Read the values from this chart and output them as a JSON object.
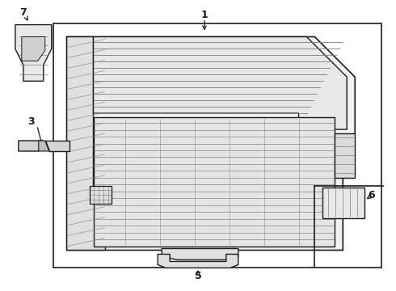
{
  "bg_color": "#ffffff",
  "line_color": "#1a1a1a",
  "gray_fill": "#d8d8d8",
  "mid_gray": "#b0b0b0",
  "dark_gray": "#808080",
  "fig_width": 4.9,
  "fig_height": 3.6,
  "dpi": 100
}
